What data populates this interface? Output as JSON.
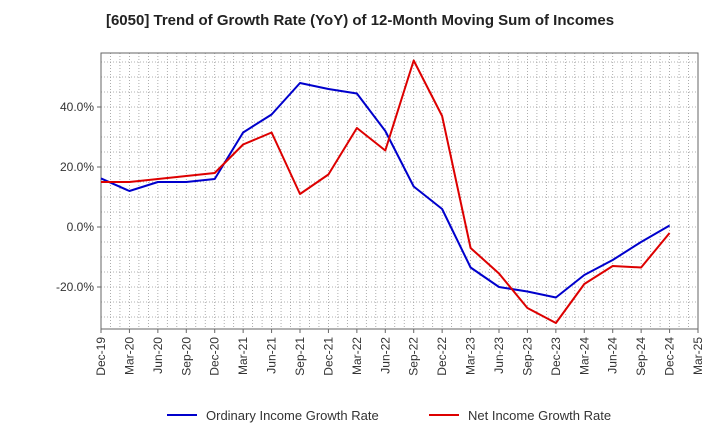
{
  "chart_data": {
    "type": "line",
    "title": "[6050]  Trend of Growth Rate (YoY) of 12-Month Moving Sum of Incomes",
    "xlabel": "",
    "ylabel": "",
    "x_tick_labels": [
      "Dec-19",
      "Mar-20",
      "Jun-20",
      "Sep-20",
      "Dec-20",
      "Mar-21",
      "Jun-21",
      "Sep-21",
      "Dec-21",
      "Mar-22",
      "Jun-22",
      "Sep-22",
      "Dec-22",
      "Mar-23",
      "Jun-23",
      "Sep-23",
      "Dec-23",
      "Mar-24",
      "Jun-24",
      "Sep-24",
      "Dec-24",
      "Mar-25"
    ],
    "y_ticks": [
      -20,
      0,
      20,
      40
    ],
    "y_tick_labels": [
      "-20.0%",
      "0.0%",
      "20.0%",
      "40.0%"
    ],
    "ylim": [
      -34,
      58
    ],
    "grid": true,
    "legend_position": "bottom",
    "categories": [
      "Dec-19",
      "Mar-20",
      "Jun-20",
      "Sep-20",
      "Dec-20",
      "Mar-21",
      "Jun-21",
      "Sep-21",
      "Dec-21",
      "Mar-22",
      "Jun-22",
      "Sep-22",
      "Dec-22",
      "Mar-23",
      "Jun-23",
      "Sep-23",
      "Dec-23",
      "Mar-24",
      "Jun-24",
      "Sep-24",
      "Dec-24"
    ],
    "series": [
      {
        "name": "Ordinary Income Growth Rate",
        "color": "#0000cc",
        "values": [
          16.2,
          12.0,
          15.0,
          15.0,
          16.0,
          31.5,
          37.5,
          48.0,
          46.0,
          44.5,
          32.0,
          13.5,
          6.0,
          -13.5,
          -20.0,
          -21.5,
          -23.5,
          -16.0,
          -11.0,
          -5.0,
          0.5
        ]
      },
      {
        "name": "Net Income Growth Rate",
        "color": "#dd0000",
        "values": [
          15.0,
          15.0,
          16.0,
          17.0,
          18.0,
          27.5,
          31.5,
          11.0,
          17.5,
          33.0,
          25.5,
          55.5,
          37.0,
          -7.0,
          -15.5,
          -27.0,
          -32.0,
          -19.0,
          -13.0,
          -13.5,
          -2.0
        ]
      }
    ]
  }
}
